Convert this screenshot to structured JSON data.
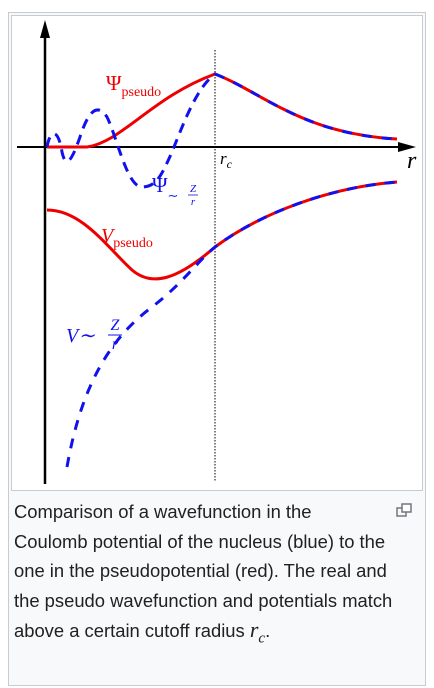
{
  "figure": {
    "labels": {
      "psi_pseudo": {
        "symbol": "Ψ",
        "sub": "pseudo"
      },
      "psi_coulomb": {
        "symbol": "Ψ",
        "sub": "∼",
        "num": "Z",
        "den": "r"
      },
      "r_c": {
        "symbol": "r",
        "sub": "c"
      },
      "r_axis": "r",
      "v_pseudo": {
        "symbol": "V",
        "sub": "pseudo"
      },
      "v_coulomb": {
        "symbol": "V∼",
        "num": "Z",
        "den": "r"
      }
    },
    "caption": {
      "text": "Comparison of a wavefunction in the Coulomb potential of the nucleus (blue) to the one in the pseudopotential (red). The real and the pseudo wavefunction and potentials match above a certain cutoff radius ",
      "symbol": "r",
      "symbol_sub": "c",
      "end": "."
    }
  }
}
